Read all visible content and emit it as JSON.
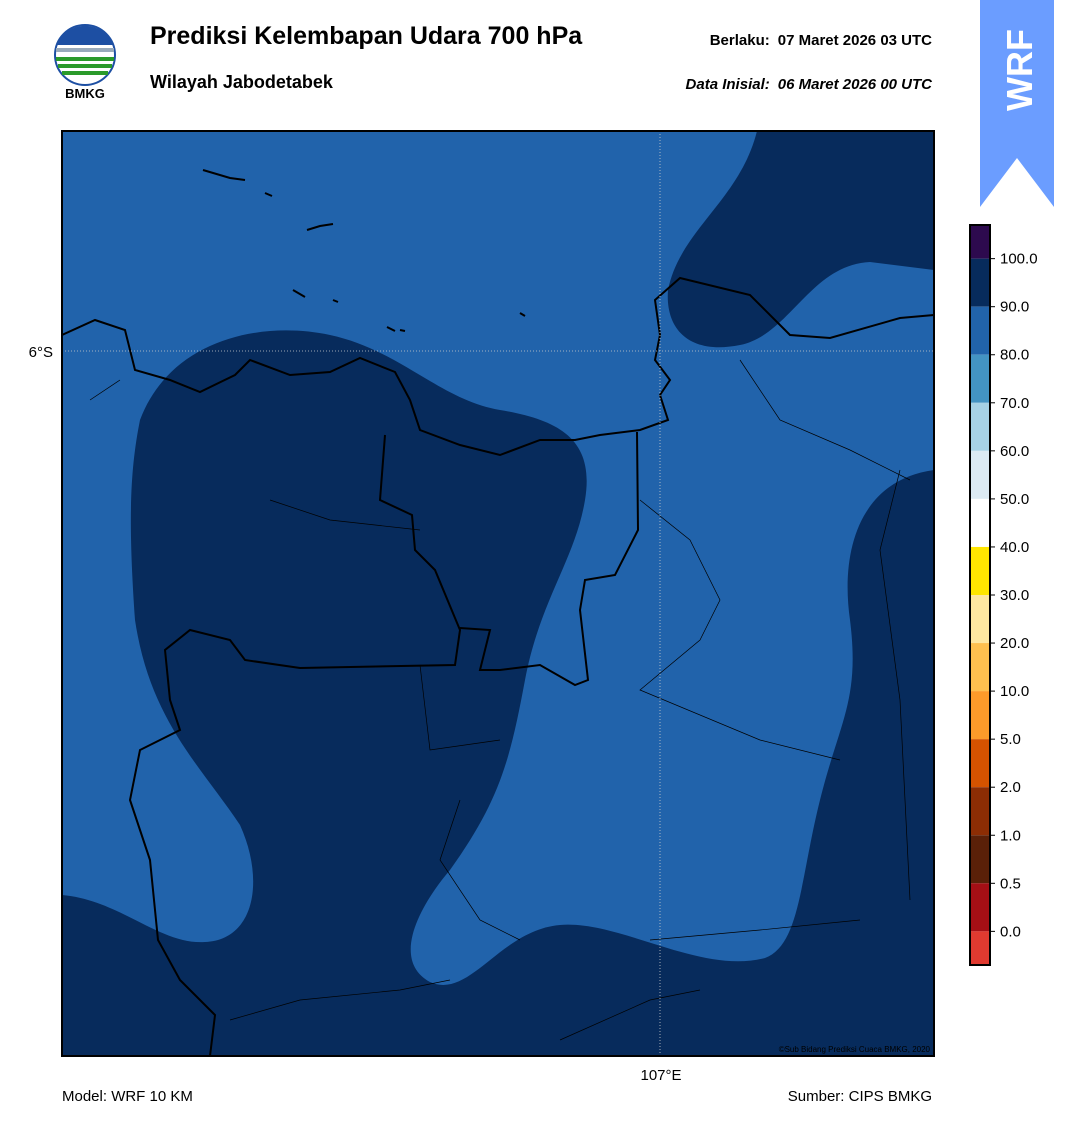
{
  "header": {
    "title": "Prediksi Kelembapan Udara 700 hPa",
    "subtitle": "Wilayah Jabodetabek",
    "valid_label": "Berlaku:",
    "valid": "07 Maret 2026 03 UTC",
    "init_label": "Data Inisial:",
    "init": "06 Maret 2026 00 UTC"
  },
  "logo": "BMKG",
  "badge": "WRF",
  "map": {
    "lat_label": "6°S",
    "lon_label": "107°E",
    "credit": "©Sub Bidang Prediksi Cuaca BMKG, 2020"
  },
  "colorbar": {
    "labels": [
      "100.0",
      "90.0",
      "80.0",
      "70.0",
      "60.0",
      "50.0",
      "40.0",
      "30.0",
      "20.0",
      "10.0",
      "5.0",
      "2.0",
      "1.0",
      "0.5",
      "0.0"
    ],
    "colors": [
      "#2d0a4e",
      "#072b5c",
      "#2163ab",
      "#4393c3",
      "#a6d1e6",
      "#dceaf3",
      "#ffffff",
      "#ffe600",
      "#fee7a0",
      "#fec04f",
      "#fd9a2a",
      "#d65300",
      "#8c2d04",
      "#5a2008",
      "#a50f15",
      "#e03a30"
    ]
  },
  "footer": {
    "model": "Model: WRF 10 KM",
    "source": "Sumber: CIPS BMKG"
  }
}
